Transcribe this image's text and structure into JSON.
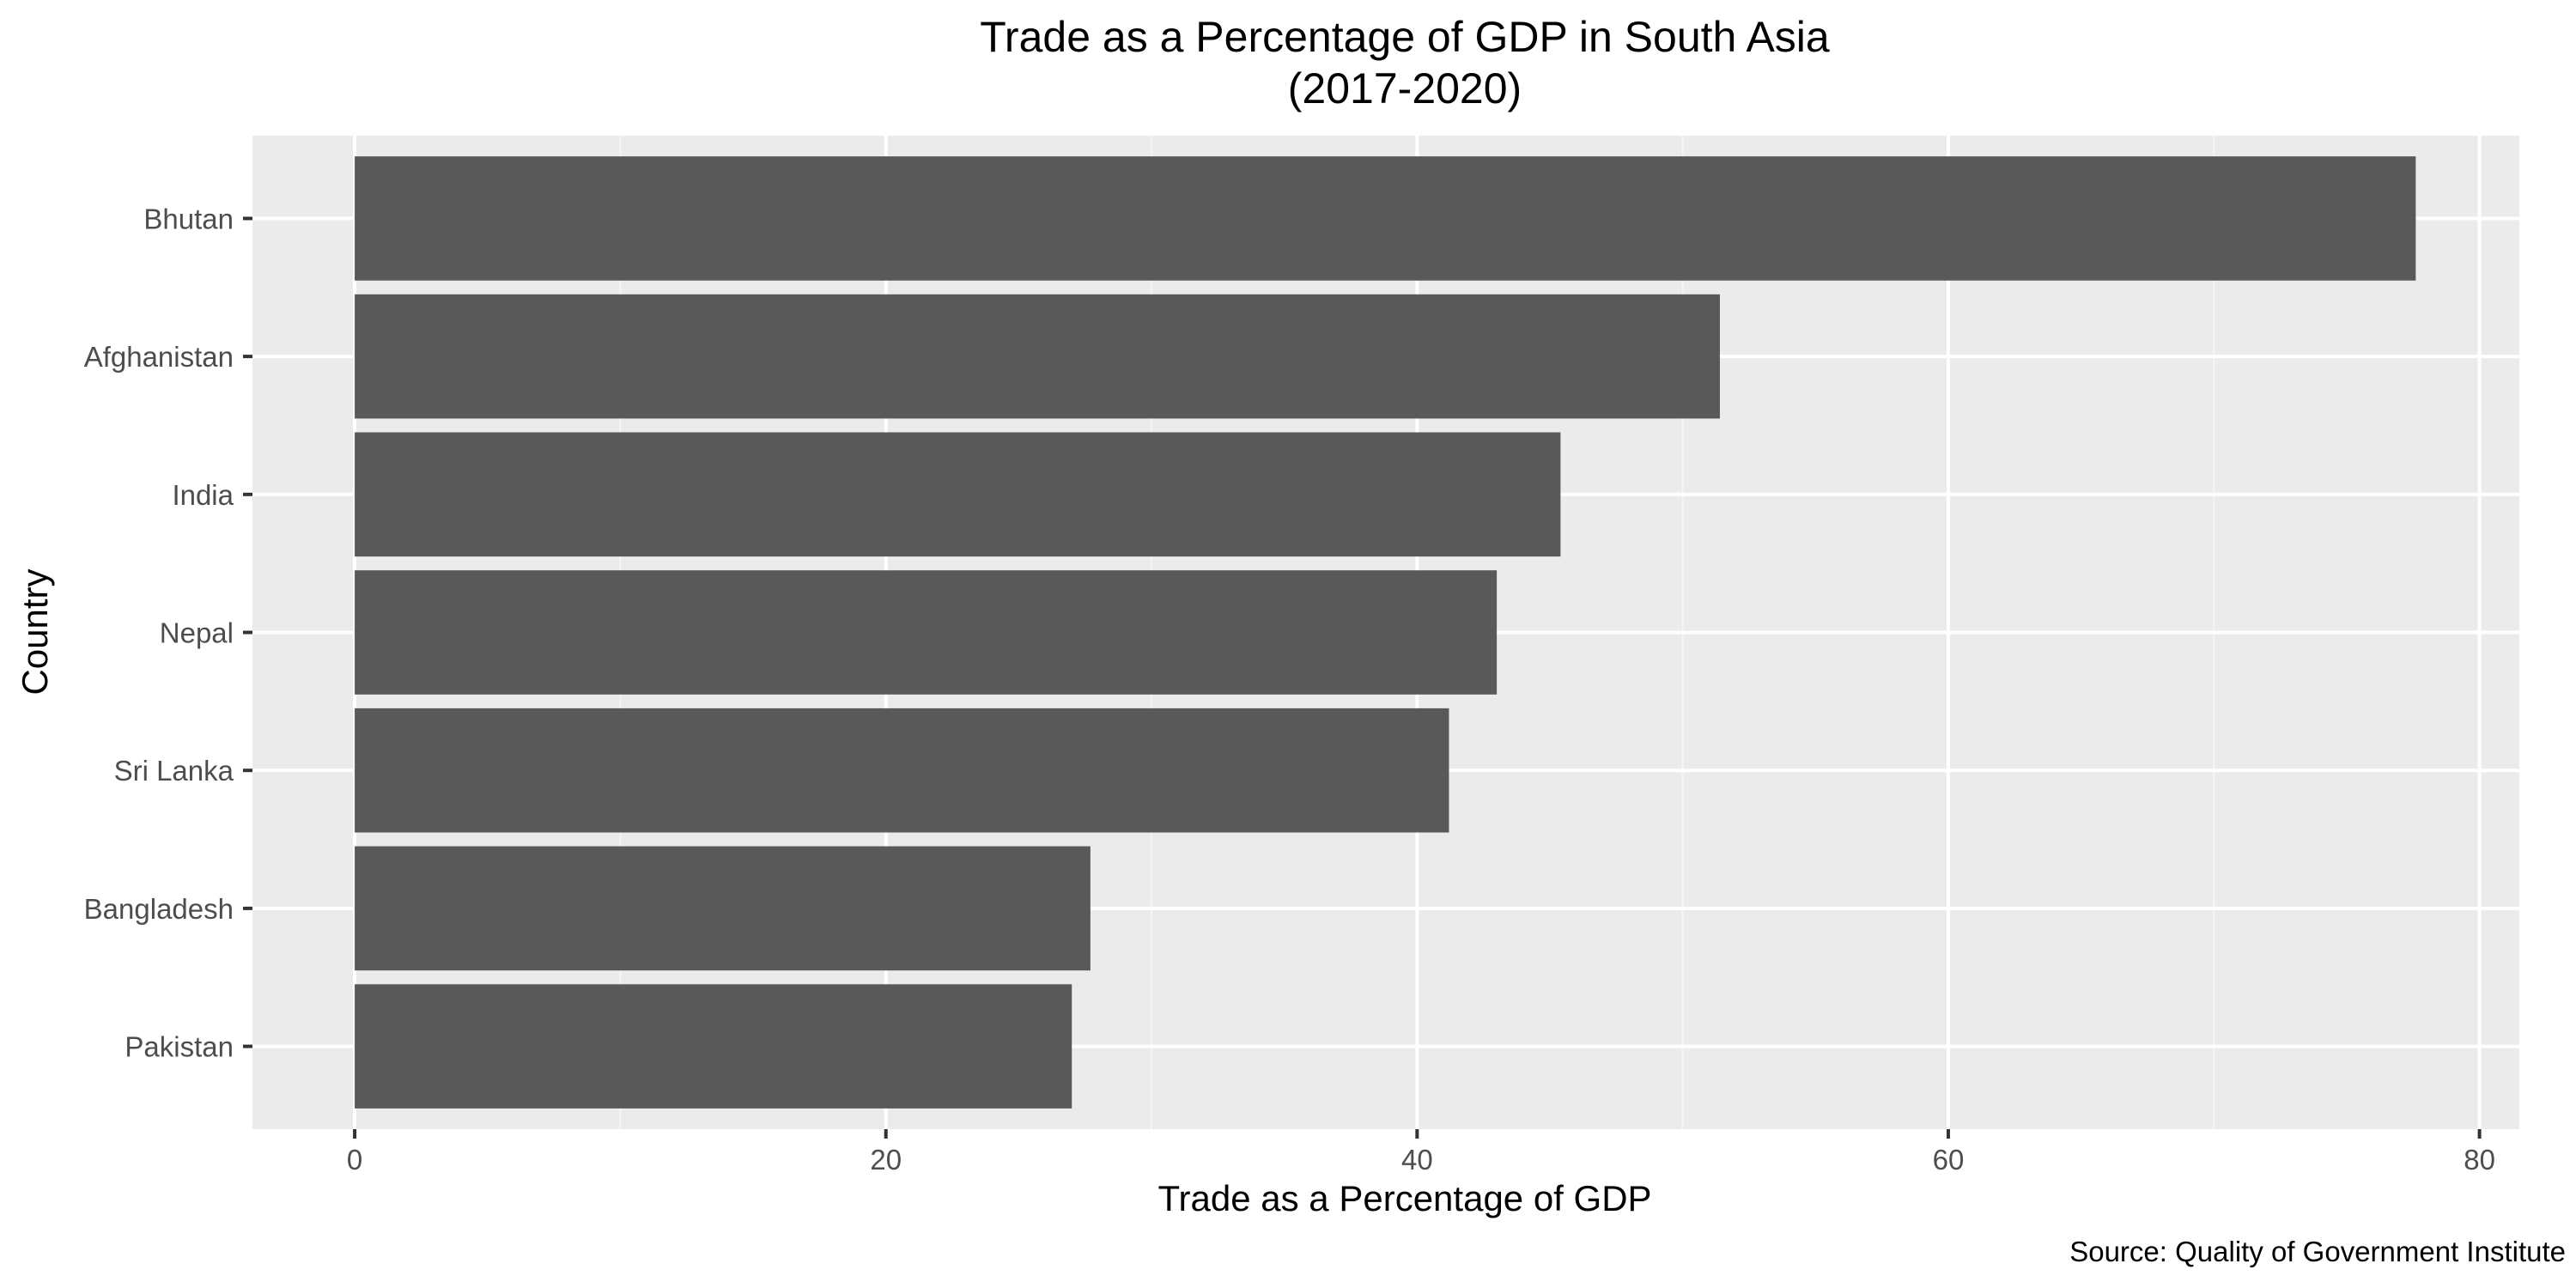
{
  "chart_data": {
    "type": "bar",
    "orientation": "horizontal",
    "title": "Trade as a Percentage of GDP in South Asia",
    "subtitle": "(2017-2020)",
    "xlabel": "Trade as a Percentage of GDP",
    "ylabel": "Country",
    "caption": "Source: Quality of Government Institute",
    "categories": [
      "Bhutan",
      "Afghanistan",
      "India",
      "Nepal",
      "Sri Lanka",
      "Bangladesh",
      "Pakistan"
    ],
    "values": [
      77.6,
      51.4,
      45.4,
      43.0,
      41.2,
      27.7,
      27.0
    ],
    "xlim": [
      -3.85,
      81.5
    ],
    "xticks": [
      0,
      20,
      40,
      60,
      80
    ],
    "xtick_labels": [
      "0",
      "20",
      "40",
      "60",
      "80"
    ],
    "grid": true,
    "colors": {
      "bar": "#595959",
      "panel_background": "#ebebeb",
      "grid_major": "#ffffff",
      "grid_minor": "#f5f5f5",
      "tick_text": "#4d4d4d"
    }
  }
}
